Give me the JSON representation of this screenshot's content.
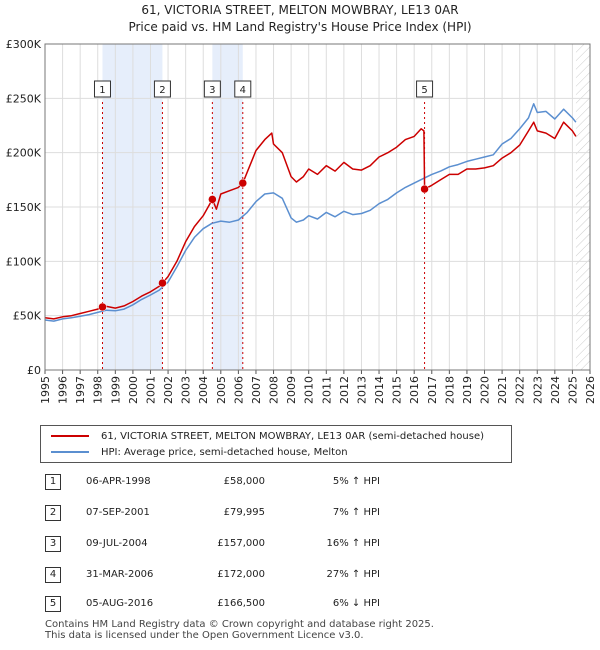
{
  "header": {
    "title_line1": "61, VICTORIA STREET, MELTON MOWBRAY, LE13 0AR",
    "title_line2": "Price paid vs. HM Land Registry's House Price Index (HPI)"
  },
  "chart_data": {
    "type": "line",
    "xlim": [
      1995,
      2026
    ],
    "ylim": [
      0,
      300000
    ],
    "y_ticks": [
      {
        "value": 0,
        "label": "£0"
      },
      {
        "value": 50000,
        "label": "£50K"
      },
      {
        "value": 100000,
        "label": "£100K"
      },
      {
        "value": 150000,
        "label": "£150K"
      },
      {
        "value": 200000,
        "label": "£200K"
      },
      {
        "value": 250000,
        "label": "£250K"
      },
      {
        "value": 300000,
        "label": "£300K"
      }
    ],
    "x_ticks": [
      "1995",
      "1996",
      "1997",
      "1998",
      "1999",
      "2000",
      "2001",
      "2002",
      "2003",
      "2004",
      "2005",
      "2006",
      "2007",
      "2008",
      "2009",
      "2010",
      "2011",
      "2012",
      "2013",
      "2014",
      "2015",
      "2016",
      "2017",
      "2018",
      "2019",
      "2020",
      "2021",
      "2022",
      "2023",
      "2024",
      "2025",
      "2026"
    ],
    "colors": {
      "property": "#cc0000",
      "hpi": "#5b8fd0",
      "shade": "#e6eefb",
      "grid": "#dddddd"
    },
    "series": [
      {
        "name": "61, VICTORIA STREET, MELTON MOWBRAY, LE13 0AR (semi-detached house)",
        "color": "#cc0000",
        "x": [
          1995.0,
          1995.5,
          1996.0,
          1996.5,
          1997.0,
          1997.5,
          1998.0,
          1998.27,
          1998.5,
          1999.0,
          1999.5,
          2000.0,
          2000.5,
          2001.0,
          2001.5,
          2001.68,
          2002.0,
          2002.5,
          2003.0,
          2003.5,
          2004.0,
          2004.52,
          2004.75,
          2005.0,
          2005.5,
          2006.0,
          2006.25,
          2006.5,
          2007.0,
          2007.5,
          2007.9,
          2008.0,
          2008.5,
          2009.0,
          2009.3,
          2009.7,
          2010.0,
          2010.5,
          2011.0,
          2011.5,
          2012.0,
          2012.5,
          2013.0,
          2013.5,
          2014.0,
          2014.5,
          2015.0,
          2015.5,
          2016.0,
          2016.4,
          2016.55,
          2016.59,
          2017.0,
          2017.5,
          2018.0,
          2018.5,
          2019.0,
          2019.5,
          2020.0,
          2020.5,
          2021.0,
          2021.5,
          2022.0,
          2022.5,
          2022.8,
          2023.0,
          2023.5,
          2024.0,
          2024.5,
          2025.0,
          2025.2
        ],
        "values": [
          48000,
          47000,
          49000,
          50000,
          52000,
          54000,
          56000,
          58000,
          58500,
          57000,
          59000,
          63000,
          68000,
          72000,
          77000,
          79995,
          86000,
          100000,
          118000,
          132000,
          142000,
          157000,
          148000,
          162000,
          165000,
          168000,
          172000,
          182000,
          202000,
          212000,
          218000,
          208000,
          200000,
          178000,
          173000,
          178000,
          185000,
          180000,
          188000,
          183000,
          191000,
          185000,
          184000,
          188000,
          196000,
          200000,
          205000,
          212000,
          215000,
          222000,
          220000,
          166500,
          170000,
          175000,
          180000,
          180000,
          185000,
          185000,
          186000,
          188000,
          195000,
          200000,
          207000,
          220000,
          228000,
          220000,
          218000,
          213000,
          228000,
          220000,
          215000
        ]
      },
      {
        "name": "HPI: Average price, semi-detached house, Melton",
        "color": "#5b8fd0",
        "x": [
          1995.0,
          1995.5,
          1996.0,
          1996.5,
          1997.0,
          1997.5,
          1998.0,
          1998.5,
          1999.0,
          1999.5,
          2000.0,
          2000.5,
          2001.0,
          2001.5,
          2002.0,
          2002.5,
          2003.0,
          2003.5,
          2004.0,
          2004.5,
          2005.0,
          2005.5,
          2006.0,
          2006.5,
          2007.0,
          2007.5,
          2008.0,
          2008.5,
          2009.0,
          2009.3,
          2009.7,
          2010.0,
          2010.5,
          2011.0,
          2011.5,
          2012.0,
          2012.5,
          2013.0,
          2013.5,
          2014.0,
          2014.5,
          2015.0,
          2015.5,
          2016.0,
          2016.5,
          2017.0,
          2017.5,
          2018.0,
          2018.5,
          2019.0,
          2019.5,
          2020.0,
          2020.5,
          2021.0,
          2021.5,
          2022.0,
          2022.5,
          2022.8,
          2023.0,
          2023.5,
          2024.0,
          2024.5,
          2025.0,
          2025.2
        ],
        "values": [
          46000,
          45000,
          47000,
          48000,
          49500,
          51000,
          53000,
          55000,
          54500,
          56000,
          60000,
          65000,
          69000,
          73500,
          81000,
          95000,
          110000,
          122000,
          130000,
          135000,
          137000,
          136000,
          138000,
          145000,
          155000,
          162000,
          163000,
          158000,
          140000,
          136000,
          138000,
          142000,
          139000,
          145000,
          141000,
          146000,
          143000,
          144000,
          147000,
          153000,
          157000,
          163000,
          168000,
          172000,
          176000,
          180000,
          183000,
          187000,
          189000,
          192000,
          194000,
          196000,
          198000,
          208000,
          213000,
          222000,
          232000,
          245000,
          237000,
          238000,
          231000,
          240000,
          232000,
          228000
        ]
      }
    ],
    "sales": [
      {
        "n": "1",
        "x": 1998.27,
        "value": 58000
      },
      {
        "n": "2",
        "x": 2001.68,
        "value": 79995
      },
      {
        "n": "3",
        "x": 2004.52,
        "value": 157000
      },
      {
        "n": "4",
        "x": 2006.25,
        "value": 172000
      },
      {
        "n": "5",
        "x": 2016.59,
        "value": 166500
      }
    ],
    "shaded_ranges": [
      [
        1998.27,
        2001.68
      ],
      [
        2004.52,
        2006.25
      ]
    ],
    "future_start": 2025.2
  },
  "legend": {
    "property_label": "61, VICTORIA STREET, MELTON MOWBRAY, LE13 0AR (semi-detached house)",
    "hpi_label": "HPI: Average price, semi-detached house, Melton"
  },
  "transactions": [
    {
      "n": "1",
      "date": "06-APR-1998",
      "price": "£58,000",
      "hpi": "5% ↑ HPI"
    },
    {
      "n": "2",
      "date": "07-SEP-2001",
      "price": "£79,995",
      "hpi": "7% ↑ HPI"
    },
    {
      "n": "3",
      "date": "09-JUL-2004",
      "price": "£157,000",
      "hpi": "16% ↑ HPI"
    },
    {
      "n": "4",
      "date": "31-MAR-2006",
      "price": "£172,000",
      "hpi": "27% ↑ HPI"
    },
    {
      "n": "5",
      "date": "05-AUG-2016",
      "price": "£166,500",
      "hpi": "6% ↓ HPI"
    }
  ],
  "footer": {
    "line1": "Contains HM Land Registry data © Crown copyright and database right 2025.",
    "line2": "This data is licensed under the Open Government Licence v3.0."
  }
}
